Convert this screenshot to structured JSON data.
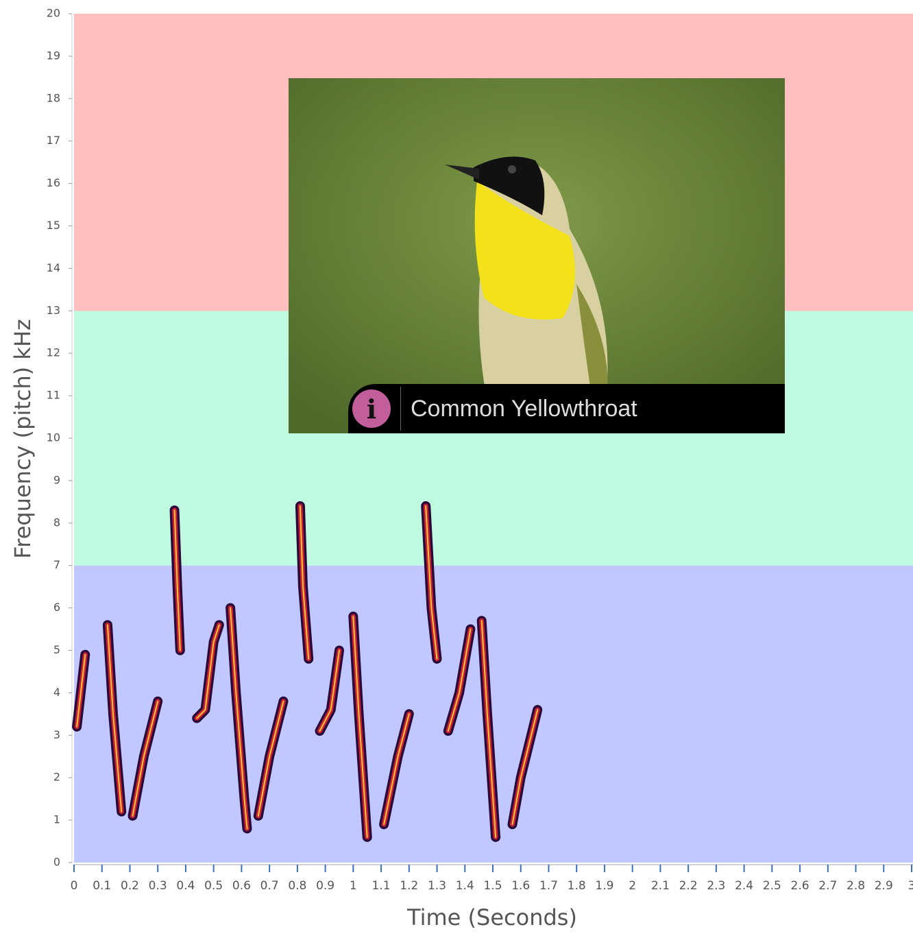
{
  "chart_data": {
    "type": "spectrogram",
    "xlabel": "Time (Seconds)",
    "ylabel": "Frequency (pitch) kHz",
    "xlim": [
      0,
      3
    ],
    "ylim": [
      0,
      20
    ],
    "xticks": [
      0,
      0.1,
      0.2,
      0.3,
      0.4,
      0.5,
      0.6,
      0.7,
      0.8,
      0.9,
      1,
      1.1,
      1.2,
      1.3,
      1.4,
      1.5,
      1.6,
      1.7,
      1.8,
      1.9,
      2,
      2.1,
      2.2,
      2.3,
      2.4,
      2.5,
      2.6,
      2.7,
      2.8,
      2.9,
      3
    ],
    "yticks": [
      0,
      1,
      2,
      3,
      4,
      5,
      6,
      7,
      8,
      9,
      10,
      11,
      12,
      13,
      14,
      15,
      16,
      17,
      18,
      19,
      20
    ],
    "bands": [
      {
        "from": 0,
        "to": 7,
        "color": "#c0c8ff"
      },
      {
        "from": 7,
        "to": 13,
        "color": "#bef9e0"
      },
      {
        "from": 13,
        "to": 20,
        "color": "#ffbfbf"
      }
    ],
    "trace": {
      "color": "#c8203a",
      "x": [
        0.01,
        0.04,
        null,
        0.12,
        0.14,
        0.17,
        null,
        0.21,
        0.25,
        0.3,
        null,
        0.36,
        0.37,
        0.38,
        null,
        0.44,
        0.47,
        0.5,
        0.52,
        null,
        0.56,
        0.58,
        0.61,
        0.62,
        null,
        0.66,
        0.7,
        0.75,
        null,
        0.81,
        0.82,
        0.84,
        null,
        0.88,
        0.92,
        0.95,
        null,
        1.0,
        1.02,
        1.05,
        null,
        1.11,
        1.16,
        1.2,
        null,
        1.26,
        1.28,
        1.3,
        null,
        1.34,
        1.38,
        1.42,
        null,
        1.46,
        1.48,
        1.51,
        null,
        1.57,
        1.6,
        1.66
      ],
      "y": [
        3.2,
        4.9,
        null,
        5.6,
        3.5,
        1.2,
        null,
        1.1,
        2.5,
        3.8,
        null,
        8.3,
        6.5,
        5,
        null,
        3.4,
        3.6,
        5.2,
        5.6,
        null,
        6,
        4,
        1.5,
        0.8,
        null,
        1.1,
        2.5,
        3.8,
        null,
        8.4,
        6.5,
        4.8,
        null,
        3.1,
        3.6,
        5,
        null,
        5.8,
        3.5,
        0.6,
        null,
        0.9,
        2.5,
        3.5,
        null,
        8.4,
        6,
        4.8,
        null,
        3.1,
        4,
        5.5,
        null,
        5.7,
        3.5,
        0.6,
        null,
        0.9,
        2,
        3.6
      ]
    }
  },
  "overlay": {
    "caption": "Common Yellowthroat",
    "icon": "i"
  }
}
